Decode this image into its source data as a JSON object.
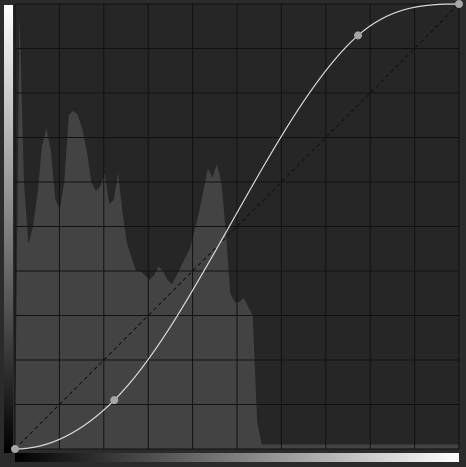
{
  "curves_editor": {
    "channel": "",
    "input_range": [
      0,
      255
    ],
    "output_range": [
      0,
      255
    ],
    "grid": {
      "visible": true,
      "divisions": 10
    },
    "colors": {
      "background": "#2b2b2b",
      "plot_background": "#262626",
      "histogram_fill": "#434343",
      "grid_line": "#111111",
      "curve_line": "#d9d9d9",
      "diagonal_line": "#111111",
      "control_point": "#a6a6a6",
      "gradient_dark": "#000000",
      "gradient_light": "#ffffff"
    },
    "control_points": [
      {
        "input": 0,
        "output": 0
      },
      {
        "input": 57,
        "output": 28
      },
      {
        "input": 197,
        "output": 237
      },
      {
        "input": 255,
        "output": 255
      }
    ],
    "histogram": [
      0,
      0.98,
      0.6,
      0.46,
      0.5,
      0.57,
      0.68,
      0.72,
      0.67,
      0.56,
      0.54,
      0.6,
      0.75,
      0.76,
      0.75,
      0.72,
      0.67,
      0.6,
      0.58,
      0.59,
      0.62,
      0.55,
      0.56,
      0.62,
      0.53,
      0.46,
      0.43,
      0.4,
      0.4,
      0.39,
      0.38,
      0.39,
      0.41,
      0.4,
      0.38,
      0.37,
      0.39,
      0.41,
      0.43,
      0.45,
      0.49,
      0.53,
      0.58,
      0.63,
      0.61,
      0.64,
      0.6,
      0.49,
      0.35,
      0.33,
      0.33,
      0.34,
      0.32,
      0.3,
      0.06,
      0.01,
      0.01,
      0.01,
      0.01,
      0.01,
      0.01,
      0.01,
      0.01,
      0.01,
      0.01,
      0.01,
      0.01,
      0.01,
      0.01,
      0.01,
      0.01,
      0.01,
      0.01,
      0.01,
      0.01,
      0.01,
      0.01,
      0.01,
      0.01,
      0.01,
      0.01,
      0.01,
      0.01,
      0.01,
      0.01,
      0.01,
      0.01,
      0.01,
      0.01,
      0.01,
      0.01,
      0.01,
      0.01,
      0.01,
      0.01,
      0.01,
      0.01,
      0.01,
      0.01,
      0.01
    ]
  }
}
